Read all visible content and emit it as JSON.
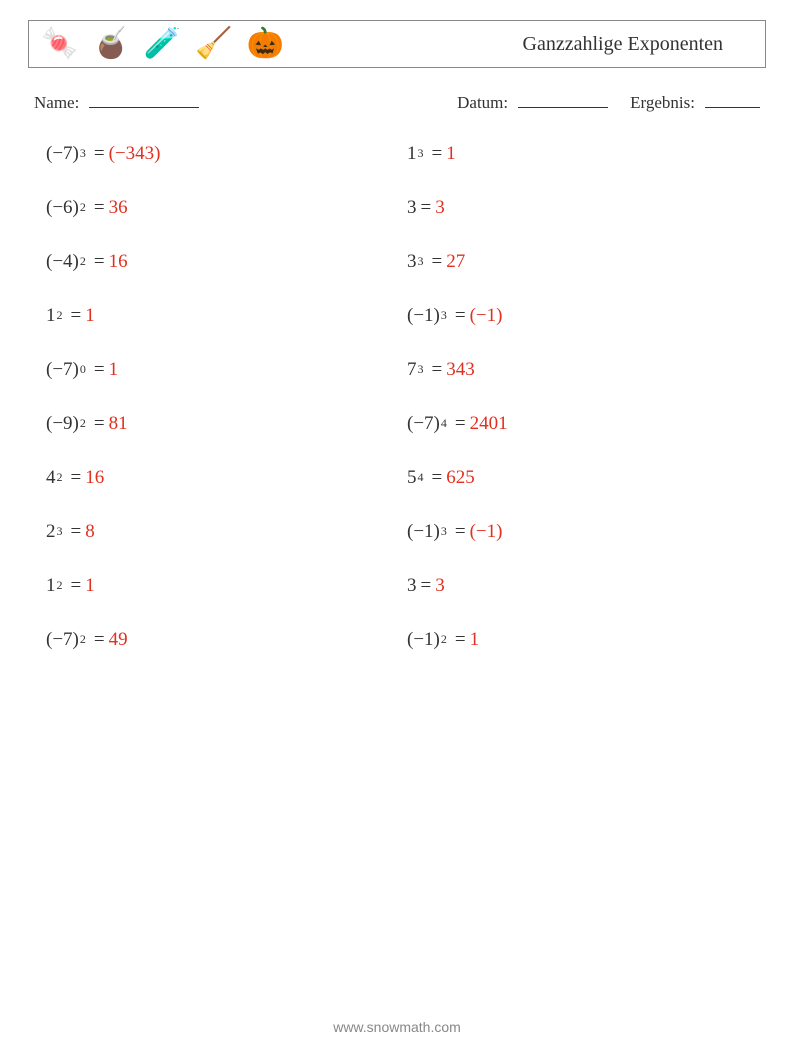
{
  "colors": {
    "text": "#333333",
    "answer": "#e03020",
    "border": "#888888",
    "footer": "#888888"
  },
  "header": {
    "icons": [
      "🍬",
      "🧉",
      "🧪",
      "🧹",
      "🎃"
    ],
    "title": "Ganzzahlige Exponenten"
  },
  "meta": {
    "name_label": "Name:",
    "date_label": "Datum:",
    "result_label": "Ergebnis:"
  },
  "problems": {
    "left": [
      {
        "base": "(−7)",
        "exp": "3",
        "answer": "(−343)"
      },
      {
        "base": "(−6)",
        "exp": "2",
        "answer": "36"
      },
      {
        "base": "(−4)",
        "exp": "2",
        "answer": "16"
      },
      {
        "base": "1",
        "exp": "2",
        "answer": "1"
      },
      {
        "base": "(−7)",
        "exp": "0",
        "answer": "1"
      },
      {
        "base": "(−9)",
        "exp": "2",
        "answer": "81"
      },
      {
        "base": "4",
        "exp": "2",
        "answer": "16"
      },
      {
        "base": "2",
        "exp": "3",
        "answer": "8"
      },
      {
        "base": "1",
        "exp": "2",
        "answer": "1"
      },
      {
        "base": "(−7)",
        "exp": "2",
        "answer": "49"
      }
    ],
    "right": [
      {
        "base": "1",
        "exp": "3",
        "answer": "1"
      },
      {
        "base": "3",
        "exp": "",
        "answer": "3"
      },
      {
        "base": "3",
        "exp": "3",
        "answer": "27"
      },
      {
        "base": "(−1)",
        "exp": "3",
        "answer": "(−1)"
      },
      {
        "base": "7",
        "exp": "3",
        "answer": "343"
      },
      {
        "base": "(−7)",
        "exp": "4",
        "answer": "2401"
      },
      {
        "base": "5",
        "exp": "4",
        "answer": "625"
      },
      {
        "base": "(−1)",
        "exp": "3",
        "answer": "(−1)"
      },
      {
        "base": "3",
        "exp": "",
        "answer": "3"
      },
      {
        "base": "(−1)",
        "exp": "2",
        "answer": "1"
      }
    ]
  },
  "footer": "www.snowmath.com"
}
